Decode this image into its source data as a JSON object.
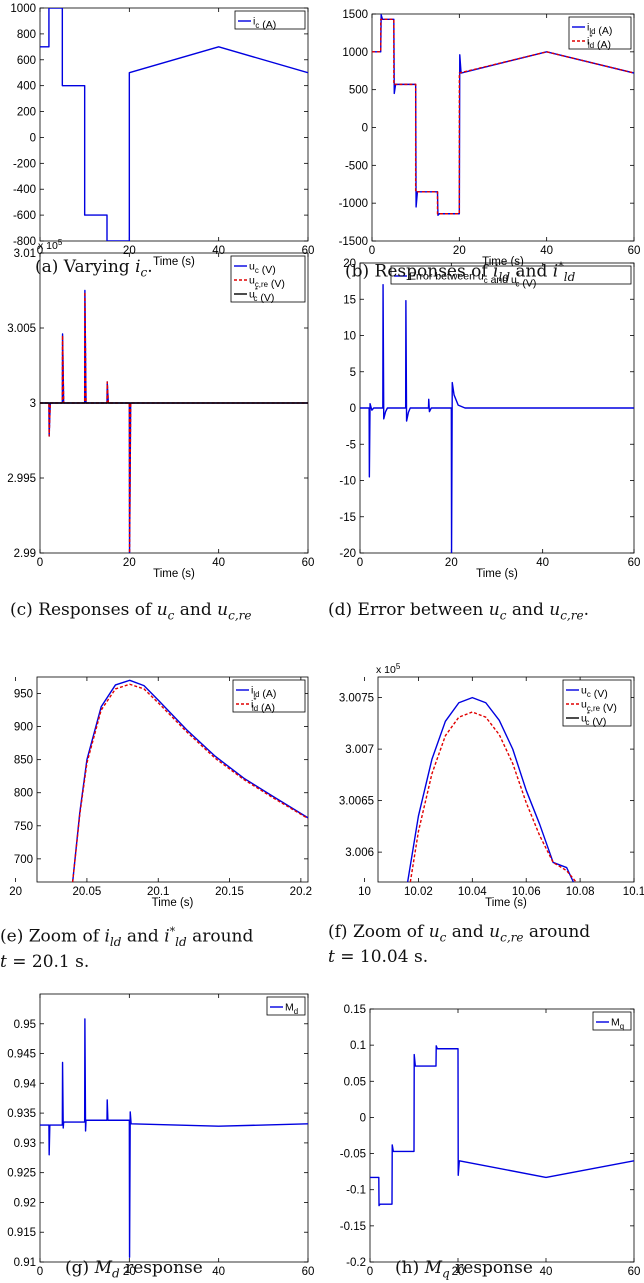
{
  "captions": [
    {
      "tag": "(a)",
      "text": "Varying i",
      "sub": "c",
      "tail": "."
    },
    {
      "tag": "(b)",
      "text": "Responses of i",
      "sub": "ld",
      "tail": " and i*",
      "sub2": "ld"
    },
    {
      "tag": "(c)",
      "text": "Responses of u",
      "sub": "c",
      "tail": " and u",
      "sub2": "c,re"
    },
    {
      "tag": "(d)",
      "text": "Error between u",
      "sub": "c",
      "tail": " and u",
      "sub2": "c,re",
      "tail2": "."
    },
    {
      "tag": "(e)",
      "text": "Zoom of i",
      "sub": "ld",
      "tail": " and i*",
      "sub2": "ld",
      "tail2": " around",
      "line2": "t = 20.1 s."
    },
    {
      "tag": "(f)",
      "text": "Zoom of u",
      "sub": "c",
      "tail": " and u",
      "sub2": "c,re",
      "tail2": " around",
      "line2": "t = 10.04 s."
    },
    {
      "tag": "(g)",
      "text": "M",
      "sub": "d",
      "tail": " response"
    },
    {
      "tag": "(h)",
      "text": "M",
      "sub": "q",
      "tail": " response"
    }
  ],
  "colors": {
    "blue": "#0000e0",
    "red": "#e00000",
    "black": "#000000"
  },
  "chart_data": [
    {
      "type": "line",
      "id": "a",
      "xlabel": "Time (s)",
      "ylabel": "",
      "xlim": [
        0,
        60
      ],
      "ylim": [
        -800,
        1000
      ],
      "xticks": [
        "0",
        "20",
        "40",
        "60"
      ],
      "xtickvals": [
        0,
        20,
        40,
        60
      ],
      "yticks": [
        "-800",
        "-600",
        "-400",
        "-200",
        "0",
        "200",
        "400",
        "600",
        "800",
        "1000"
      ],
      "ytickvals": [
        -800,
        -600,
        -400,
        -200,
        0,
        200,
        400,
        600,
        800,
        1000
      ],
      "exponent": "",
      "series": [
        {
          "name": "i_c (A)",
          "color": "blue",
          "dash": false,
          "x": [
            0,
            2,
            2,
            5,
            5,
            10,
            10,
            15,
            15,
            20,
            20,
            40,
            60
          ],
          "y": [
            700,
            700,
            1000,
            1000,
            400,
            400,
            -600,
            -600,
            -800,
            -800,
            500,
            700,
            500
          ]
        }
      ]
    },
    {
      "type": "line",
      "id": "b",
      "xlabel": "Time (s)",
      "ylabel": "",
      "xlim": [
        0,
        60
      ],
      "ylim": [
        -1500,
        1500
      ],
      "xticks": [
        "0",
        "20",
        "40",
        "60"
      ],
      "xtickvals": [
        0,
        20,
        40,
        60
      ],
      "yticks": [
        "-1500",
        "-1000",
        "-500",
        "0",
        "500",
        "1000",
        "1500"
      ],
      "ytickvals": [
        -1500,
        -1000,
        -500,
        0,
        500,
        1000,
        1500
      ],
      "exponent": "",
      "series": [
        {
          "name": "i_ld (A)",
          "color": "blue",
          "dash": false,
          "x": [
            0,
            2,
            2.1,
            2.4,
            5,
            5.1,
            5.4,
            10,
            10.1,
            10.4,
            15,
            15.1,
            15.4,
            20,
            20.1,
            20.4,
            40,
            60
          ],
          "y": [
            1000,
            1000,
            1490,
            1430,
            1430,
            450,
            570,
            570,
            -1050,
            -850,
            -850,
            -1160,
            -1140,
            -1140,
            960,
            720,
            1000,
            720
          ]
        },
        {
          "name": "i*_ld (A)",
          "color": "red",
          "dash": true,
          "x": [
            0,
            2,
            2,
            5,
            5,
            10,
            10,
            15,
            15,
            20,
            20,
            40,
            60
          ],
          "y": [
            1000,
            1000,
            1430,
            1430,
            570,
            570,
            -850,
            -850,
            -1140,
            -1140,
            720,
            1000,
            720
          ]
        }
      ]
    },
    {
      "type": "line",
      "id": "c",
      "xlabel": "Time (s)",
      "ylabel": "",
      "xlim": [
        0,
        60
      ],
      "ylim": [
        2.99,
        3.01
      ],
      "xticks": [
        "0",
        "20",
        "40",
        "60"
      ],
      "xtickvals": [
        0,
        20,
        40,
        60
      ],
      "yticks": [
        "2.99",
        "2.995",
        "3",
        "3.005",
        "3.01"
      ],
      "ytickvals": [
        2.99,
        2.995,
        3,
        3.005,
        3.01
      ],
      "exponent": "x 10^5",
      "series": [
        {
          "name": "u_c (V)",
          "color": "blue",
          "dash": false,
          "x": [
            0,
            2,
            2.05,
            2.3,
            5,
            5.05,
            5.3,
            10,
            10.05,
            10.3,
            15,
            15.05,
            15.3,
            20,
            20.05,
            20.3,
            60
          ],
          "y": [
            3,
            3,
            2.9978,
            3,
            3,
            3.0046,
            3,
            3,
            3.0075,
            3,
            3,
            3.0014,
            3,
            3,
            2.9899,
            3,
            3
          ]
        },
        {
          "name": "u_c,re (V)",
          "color": "red",
          "dash": true,
          "x": [
            0,
            2,
            2.05,
            2.3,
            5,
            5.05,
            5.3,
            10,
            10.05,
            10.3,
            15,
            15.05,
            15.3,
            20,
            20.05,
            20.3,
            60
          ],
          "y": [
            3,
            3,
            2.9978,
            3,
            3,
            3.0045,
            3,
            3,
            3.0074,
            3,
            3,
            3.0014,
            3,
            3,
            2.99,
            3,
            3
          ]
        },
        {
          "name": "u*_c (V)",
          "color": "black",
          "dash": false,
          "x": [
            0,
            60
          ],
          "y": [
            3,
            3
          ]
        }
      ]
    },
    {
      "type": "line",
      "id": "d",
      "xlabel": "Time (s)",
      "ylabel": "",
      "xlim": [
        0,
        60
      ],
      "ylim": [
        -20,
        20
      ],
      "xticks": [
        "0",
        "20",
        "40",
        "60"
      ],
      "xtickvals": [
        0,
        20,
        40,
        60
      ],
      "yticks": [
        "-20",
        "-15",
        "-10",
        "-5",
        "0",
        "5",
        "10",
        "15",
        "20"
      ],
      "ytickvals": [
        -20,
        -15,
        -10,
        -5,
        0,
        5,
        10,
        15,
        20
      ],
      "exponent": "",
      "series": [
        {
          "name": "Error between u_c and u*_c (V)",
          "color": "blue",
          "dash": false,
          "x": [
            0,
            2,
            2.05,
            2.2,
            2.6,
            3,
            5,
            5.05,
            5.2,
            5.6,
            6,
            10,
            10.05,
            10.2,
            10.6,
            11,
            15,
            15.05,
            15.2,
            15.6,
            20,
            20.05,
            20.2,
            20.6,
            21.5,
            23,
            60
          ],
          "y": [
            0,
            0,
            -9.5,
            0.6,
            -0.3,
            0,
            0,
            17,
            -1.5,
            -0.5,
            0,
            0,
            14.8,
            -1.8,
            -0.6,
            0,
            0,
            1.2,
            -0.5,
            0,
            0,
            -20,
            3.5,
            1.8,
            0.4,
            0,
            0
          ]
        }
      ]
    },
    {
      "type": "line",
      "id": "e",
      "xlabel": "Time (s)",
      "ylabel": "",
      "xlim": [
        20.015,
        20.205
      ],
      "ylim": [
        665,
        975
      ],
      "xticks": [
        "20",
        "20.05",
        "20.1",
        "20.15",
        "20.2"
      ],
      "xtickvals": [
        20,
        20.05,
        20.1,
        20.15,
        20.2
      ],
      "yticks": [
        "700",
        "750",
        "800",
        "850",
        "900",
        "950"
      ],
      "ytickvals": [
        700,
        750,
        800,
        850,
        900,
        950
      ],
      "exponent": "",
      "series": [
        {
          "name": "i_ld (A)",
          "color": "blue",
          "dash": false,
          "x": [
            20.04,
            20.045,
            20.05,
            20.06,
            20.07,
            20.08,
            20.09,
            20.1,
            20.12,
            20.14,
            20.16,
            20.18,
            20.205
          ],
          "y": [
            665,
            770,
            850,
            930,
            963,
            970,
            962,
            940,
            895,
            855,
            822,
            795,
            762
          ]
        },
        {
          "name": "i*_ld (A)",
          "color": "red",
          "dash": true,
          "x": [
            20.04,
            20.045,
            20.05,
            20.06,
            20.07,
            20.08,
            20.09,
            20.1,
            20.12,
            20.14,
            20.16,
            20.18,
            20.205
          ],
          "y": [
            665,
            767,
            845,
            925,
            957,
            964,
            957,
            936,
            892,
            852,
            820,
            793,
            761
          ]
        }
      ]
    },
    {
      "type": "line",
      "id": "f",
      "xlabel": "Time (s)",
      "ylabel": "",
      "xlim": [
        10.005,
        10.1
      ],
      "ylim": [
        3.00571,
        3.0077
      ],
      "xticks": [
        "10",
        "10.02",
        "10.04",
        "10.06",
        "10.08",
        "10.1"
      ],
      "xtickvals": [
        10,
        10.02,
        10.04,
        10.06,
        10.08,
        10.1
      ],
      "yticks": [
        "3.006",
        "3.0065",
        "3.007",
        "3.0075"
      ],
      "ytickvals": [
        3.006,
        3.0065,
        3.007,
        3.0075
      ],
      "exponent": "x 10^5",
      "series": [
        {
          "name": "u_c (V)",
          "color": "blue",
          "dash": false,
          "x": [
            10.016,
            10.02,
            10.025,
            10.03,
            10.035,
            10.04,
            10.045,
            10.05,
            10.055,
            10.06,
            10.065,
            10.07,
            10.075,
            10.0775
          ],
          "y": [
            3.00571,
            3.00635,
            3.0069,
            3.00727,
            3.00745,
            3.0075,
            3.00745,
            3.00728,
            3.007,
            3.0066,
            3.00627,
            3.0059,
            3.00585,
            3.00571
          ]
        },
        {
          "name": "u_c,re (V)",
          "color": "red",
          "dash": true,
          "x": [
            10.017,
            10.02,
            10.025,
            10.03,
            10.035,
            10.04,
            10.045,
            10.05,
            10.055,
            10.06,
            10.065,
            10.07,
            10.075,
            10.0785
          ],
          "y": [
            3.00571,
            3.0062,
            3.00676,
            3.00713,
            3.00731,
            3.00736,
            3.00731,
            3.00714,
            3.00686,
            3.00648,
            3.00616,
            3.0059,
            3.00582,
            3.00571
          ]
        },
        {
          "name": "u*_c (V)",
          "color": "black",
          "dash": false,
          "x": [],
          "y": []
        }
      ]
    },
    {
      "type": "line",
      "id": "g",
      "xlabel": "Time (s)",
      "ylabel": "",
      "xlim": [
        0,
        60
      ],
      "ylim": [
        0.91,
        0.955
      ],
      "xticks": [
        "0",
        "20",
        "40",
        "60"
      ],
      "xtickvals": [
        0,
        20,
        40,
        60
      ],
      "yticks": [
        "0.91",
        "0.915",
        "0.92",
        "0.925",
        "0.93",
        "0.935",
        "0.94",
        "0.945",
        "0.95"
      ],
      "ytickvals": [
        0.91,
        0.915,
        0.92,
        0.925,
        0.93,
        0.935,
        0.94,
        0.945,
        0.95
      ],
      "exponent": "",
      "series": [
        {
          "name": "M_d",
          "color": "blue",
          "dash": false,
          "x": [
            0,
            2,
            2.05,
            2.2,
            2.3,
            5,
            5.05,
            5.2,
            5.3,
            10,
            10.05,
            10.2,
            10.3,
            15,
            15.05,
            15.2,
            15.3,
            20,
            20.05,
            20.2,
            20.4,
            40,
            60
          ],
          "y": [
            0.933,
            0.933,
            0.928,
            0.933,
            0.933,
            0.933,
            0.9435,
            0.9325,
            0.9335,
            0.9335,
            0.9508,
            0.932,
            0.9338,
            0.9338,
            0.9372,
            0.9338,
            0.9338,
            0.9338,
            0.9108,
            0.9352,
            0.9332,
            0.9328,
            0.9332
          ]
        }
      ]
    },
    {
      "type": "line",
      "id": "h",
      "xlabel": "Time (s)",
      "ylabel": "",
      "xlim": [
        0,
        60
      ],
      "ylim": [
        -0.2,
        0.15
      ],
      "xticks": [
        "0",
        "20",
        "40",
        "60"
      ],
      "xtickvals": [
        0,
        20,
        40,
        60
      ],
      "yticks": [
        "-0.2",
        "-0.15",
        "-0.1",
        "-0.05",
        "0",
        "0.05",
        "0.1",
        "0.15"
      ],
      "ytickvals": [
        -0.2,
        -0.15,
        -0.1,
        -0.05,
        0,
        0.05,
        0.1,
        0.15
      ],
      "exponent": "",
      "series": [
        {
          "name": "M_q",
          "color": "blue",
          "dash": false,
          "x": [
            0,
            2,
            2.05,
            2.3,
            5,
            5.05,
            5.3,
            10,
            10.05,
            10.3,
            15,
            15.05,
            15.3,
            20,
            20.05,
            20.3,
            40,
            60
          ],
          "y": [
            -0.083,
            -0.083,
            -0.122,
            -0.12,
            -0.12,
            -0.038,
            -0.047,
            -0.047,
            0.087,
            0.071,
            0.071,
            0.099,
            0.095,
            0.095,
            -0.08,
            -0.06,
            -0.083,
            -0.06
          ]
        }
      ]
    }
  ]
}
